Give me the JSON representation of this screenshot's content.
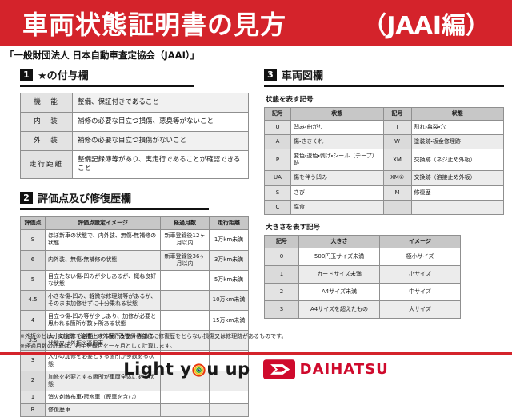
{
  "colors": {
    "banner_red": "#d4232b",
    "brand_red": "#cf0a2c",
    "header_gray": "#c7c7c7"
  },
  "banner": {
    "title": "車両状態証明書の見方",
    "edition": "（JAAI編）"
  },
  "subtitle": "「一般財団法人 日本自動車査定協会（JAAI）」",
  "section1": {
    "number": "1",
    "title": "★の付与欄",
    "rows": [
      [
        "機　能",
        "整備、保証付きであること"
      ],
      [
        "内　装",
        "補修の必要な目立つ損傷、悪臭等がないこと"
      ],
      [
        "外　装",
        "補修の必要な目立つ損傷がないこと"
      ],
      [
        "走行距離",
        "整備記録簿等があり、実走行であることが確認できること"
      ]
    ]
  },
  "section2": {
    "number": "2",
    "title": "評価点及び修復歴欄",
    "headers": [
      "評価点",
      "評価点設定イメージ",
      "経過月数",
      "走行距離"
    ],
    "rows": [
      [
        "S",
        "ほぼ新車の状態で、内外装、無傷・無補修の状態",
        "新車登録後12ヶ月以内",
        "1万km未満"
      ],
      [
        "6",
        "内外装、無傷・無補修の状態",
        "新車登録後36ヶ月以内",
        "3万km未満"
      ],
      [
        "5",
        "目立たない傷・凹みが少しあるが、概ね良好な状態",
        "",
        "5万km未満"
      ],
      [
        "4.5",
        "小さな傷・凹み、軽微な修理跡等があるが、そのまま加修せずに十分乗れる状態",
        "",
        "10万km未満"
      ],
      [
        "4",
        "目立つ傷・凹み等が少しあり、加修が必要と思われる箇所が数ヶ所ある状態",
        "",
        "15万km未満"
      ],
      [
        "3.5",
        "大小の加修を必要とする箇所が数ヶ所ある状態又は外板②適用車",
        "",
        ""
      ],
      [
        "3",
        "大小の加修を必要とする箇所が多数ある状態",
        "",
        ""
      ],
      [
        "2",
        "加修を必要とする箇所が車両全体にある状態",
        "",
        ""
      ],
      [
        "1",
        "消火剤散布車・冠水車（歴車を含む）",
        "",
        ""
      ],
      [
        "R",
        "修復歴車",
        "",
        ""
      ]
    ]
  },
  "section3": {
    "number": "3",
    "title": "車両図欄",
    "state_table": {
      "caption": "状態を表す記号",
      "headers": [
        "記号",
        "状態",
        "記号",
        "状態"
      ],
      "rows": [
        [
          "U",
          "凹み・曲がり",
          "T",
          "割れ・亀裂・穴"
        ],
        [
          "A",
          "傷・ささくれ",
          "W",
          "塗装跡・板金修理跡"
        ],
        [
          "P",
          "変色・退色・剥げ・シール（テープ）跡",
          "XM",
          "交換跡（ネジ止め外板）"
        ],
        [
          "UA",
          "傷を伴う凹み",
          "XM②",
          "交換跡（溶接止め外板）"
        ],
        [
          "S",
          "さび",
          "M",
          "修復歴"
        ],
        [
          "C",
          "腐食",
          "",
          ""
        ]
      ]
    },
    "size_table": {
      "caption": "大きさを表す記号",
      "headers": [
        "記号",
        "大きさ",
        "イメージ"
      ],
      "rows": [
        [
          "0",
          "500円玉サイズ未満",
          "極小サイズ"
        ],
        [
          "1",
          "カードサイズ未満",
          "小サイズ"
        ],
        [
          "2",
          "A4サイズ未満",
          "中サイズ"
        ],
        [
          "3",
          "A4サイズを超えたもの",
          "大サイズ"
        ]
      ]
    }
  },
  "notes": [
    "※外板②とは、交換跡（溶接止め外板）及び骨格部位に修復歴をとらない損傷又は修理跡があるものです。",
    "※経過月数の計算は、初年登録月を一ヶ月として計算します。"
  ],
  "footer": {
    "slogan_pre": "Light y",
    "slogan_post": "u up",
    "brand": "DAIHATSU"
  }
}
